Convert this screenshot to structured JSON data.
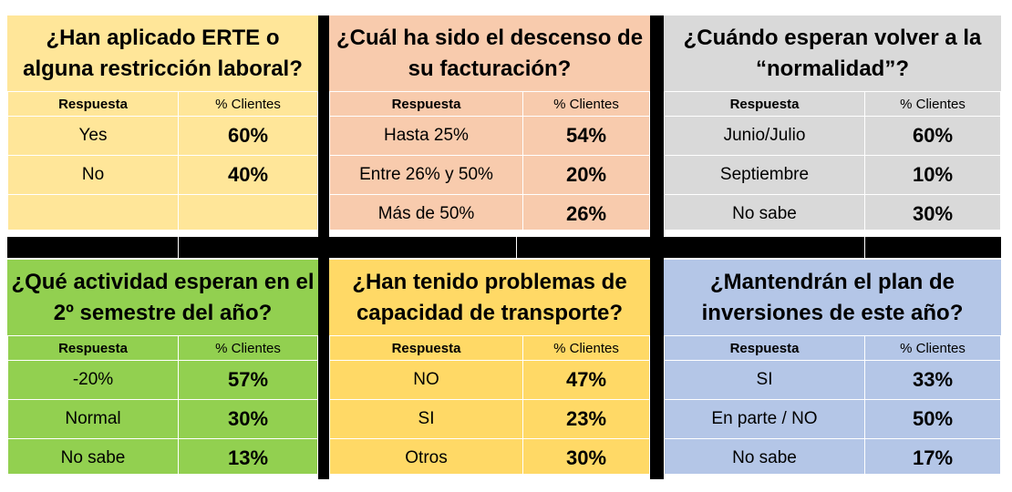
{
  "chart_data": [
    {
      "type": "table",
      "title": "¿Han aplicado ERTE o alguna restricción laboral?",
      "columns": [
        "Respuesta",
        "% Clientes"
      ],
      "rows": [
        [
          "Yes",
          "60%"
        ],
        [
          "No",
          "40%"
        ],
        [
          "",
          ""
        ]
      ],
      "background": "#FFE699"
    },
    {
      "type": "table",
      "title": "¿Cuál ha sido el descenso de su facturación?",
      "columns": [
        "Respuesta",
        "% Clientes"
      ],
      "rows": [
        [
          "Hasta 25%",
          "54%"
        ],
        [
          "Entre 26% y 50%",
          "20%"
        ],
        [
          "Más de 50%",
          "26%"
        ]
      ],
      "background": "#F8CBAD"
    },
    {
      "type": "table",
      "title": "¿Cuándo esperan volver a la “normalidad”?",
      "columns": [
        "Respuesta",
        "% Clientes"
      ],
      "rows": [
        [
          "Junio/Julio",
          "60%"
        ],
        [
          "Septiembre",
          "10%"
        ],
        [
          "No sabe",
          "30%"
        ]
      ],
      "background": "#D9D9D9"
    },
    {
      "type": "table",
      "title": "¿Qué actividad esperan en el 2º semestre del año?",
      "columns": [
        "Respuesta",
        "% Clientes"
      ],
      "rows": [
        [
          "-20%",
          "57%"
        ],
        [
          "Normal",
          "30%"
        ],
        [
          "No sabe",
          "13%"
        ]
      ],
      "background": "#92D050"
    },
    {
      "type": "table",
      "title": "¿Han tenido problemas de capacidad de transporte?",
      "columns": [
        "Respuesta",
        "% Clientes"
      ],
      "rows": [
        [
          "NO",
          "47%"
        ],
        [
          "SI",
          "23%"
        ],
        [
          "Otros",
          "30%"
        ]
      ],
      "background": "#FFD966"
    },
    {
      "type": "table",
      "title": "¿Mantendrán el plan de inversiones de este año?",
      "columns": [
        "Respuesta",
        "% Clientes"
      ],
      "rows": [
        [
          "SI",
          "33%"
        ],
        [
          "En parte / NO",
          "50%"
        ],
        [
          "No sabe",
          "17%"
        ]
      ],
      "background": "#B4C6E7"
    }
  ]
}
